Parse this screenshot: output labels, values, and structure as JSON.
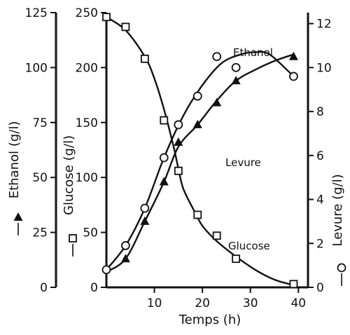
{
  "chart_data": {
    "type": "line",
    "title": "",
    "xlabel": "Temps (h)",
    "xlim": [
      0,
      42
    ],
    "x_ticks": [
      10,
      20,
      30,
      40
    ],
    "axes": {
      "ethanol": {
        "label": "Ethanol (g/l)",
        "ylim": [
          0,
          125
        ],
        "ticks": [
          0,
          25,
          50,
          75,
          100,
          125
        ],
        "side": "left-outer"
      },
      "glucose": {
        "label": "Glucose (g/l)",
        "ylim": [
          0,
          250
        ],
        "ticks": [
          0,
          50,
          100,
          150,
          200,
          250
        ],
        "side": "left-inner"
      },
      "levure": {
        "label": "Levure (g/l)",
        "ylim": [
          0,
          12.5
        ],
        "ticks": [
          0,
          2,
          4,
          6,
          8,
          10,
          12
        ],
        "side": "right"
      }
    },
    "series": [
      {
        "name": "Glucose",
        "axis": "glucose",
        "marker": "square",
        "x": [
          0,
          4,
          8,
          12,
          15,
          19,
          23,
          27,
          39
        ],
        "values": [
          246,
          237,
          208,
          152,
          106,
          66,
          47,
          26,
          3
        ],
        "curve_x": [
          0,
          4,
          8,
          10,
          12,
          14,
          15,
          16,
          18,
          20,
          23,
          27,
          31,
          35,
          39
        ],
        "curve_y": [
          246,
          234,
          210,
          190,
          162,
          128,
          108,
          90,
          72,
          56,
          42,
          28,
          16,
          7,
          2
        ]
      },
      {
        "name": "Ethanol",
        "axis": "ethanol",
        "marker": "triangle",
        "x": [
          4,
          8,
          12,
          15,
          19,
          23,
          27,
          39
        ],
        "values": [
          13,
          30,
          48,
          66,
          74,
          84,
          94,
          105
        ],
        "curve_x": [
          0,
          4,
          8,
          12,
          15,
          19,
          23,
          27,
          31,
          35,
          39
        ],
        "curve_y": [
          7,
          13,
          30,
          48,
          64,
          74,
          85,
          94,
          99,
          103,
          106
        ]
      },
      {
        "name": "Levure",
        "axis": "levure",
        "marker": "circle",
        "x": [
          0,
          4,
          8,
          12,
          15,
          19,
          23,
          27,
          39
        ],
        "values": [
          0.8,
          1.9,
          3.6,
          5.9,
          7.4,
          8.7,
          10.5,
          10.0,
          9.6
        ],
        "curve_x": [
          0,
          4,
          8,
          12,
          16,
          20,
          24,
          28,
          31,
          34,
          39
        ],
        "curve_y": [
          0.8,
          1.9,
          3.6,
          5.9,
          7.8,
          9.2,
          10.2,
          10.6,
          10.7,
          10.6,
          9.6
        ]
      }
    ],
    "grid": false,
    "legend": "none",
    "colors": {
      "ink": "#111111",
      "background": "#ffffff"
    }
  }
}
